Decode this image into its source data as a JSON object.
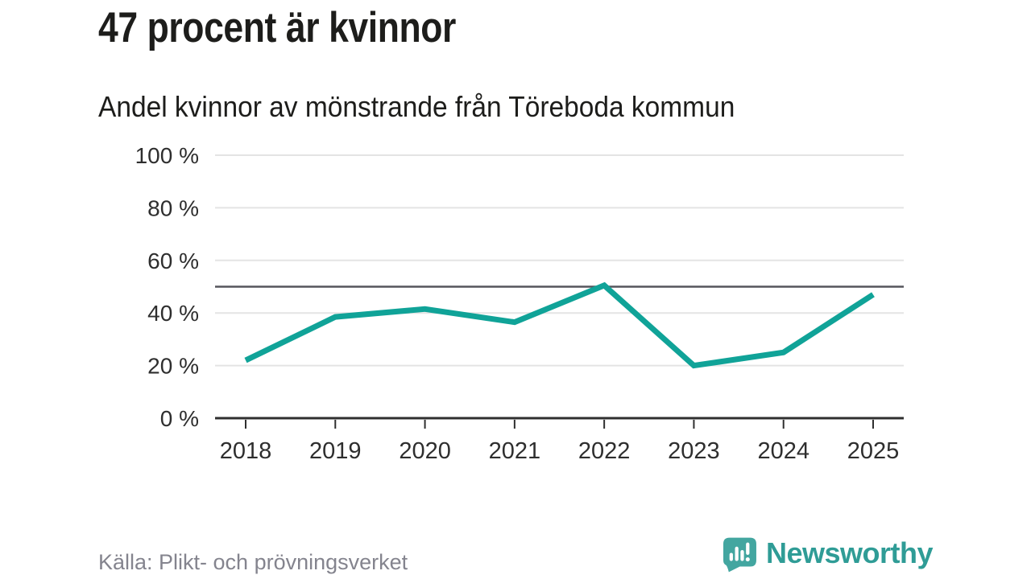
{
  "chart_data": {
    "type": "line",
    "title": "47 procent är kvinnor",
    "subtitle": "Andel kvinnor av mönstrande från Töreboda kommun",
    "x": [
      "2018",
      "2019",
      "2020",
      "2021",
      "2022",
      "2023",
      "2024",
      "2025"
    ],
    "series": [
      {
        "name": "Andel kvinnor av mönstrande",
        "color": "#10a398",
        "values": [
          22,
          38.5,
          41.5,
          36.5,
          50.5,
          20,
          25,
          47
        ]
      }
    ],
    "ylim": [
      0,
      100
    ],
    "yticks": [
      0,
      20,
      40,
      60,
      80,
      100
    ],
    "ytick_suffix": " %",
    "xlabel": "",
    "ylabel": "",
    "grid": true,
    "legend": "none",
    "reference_line": {
      "value": 50
    }
  },
  "footer": {
    "source": "Källa: Plikt- och prövningsverket",
    "brand": "Newsworthy"
  },
  "colors": {
    "line": "#10a398",
    "reference": "#55555c",
    "axis": "#2f2f2f",
    "grid": "#e4e4e4",
    "tick_label": "#2e2e2e",
    "text": "#1d1d1b",
    "source": "#84848e",
    "brand": "#2f9c96",
    "brand_icon": "#43a6a0"
  }
}
